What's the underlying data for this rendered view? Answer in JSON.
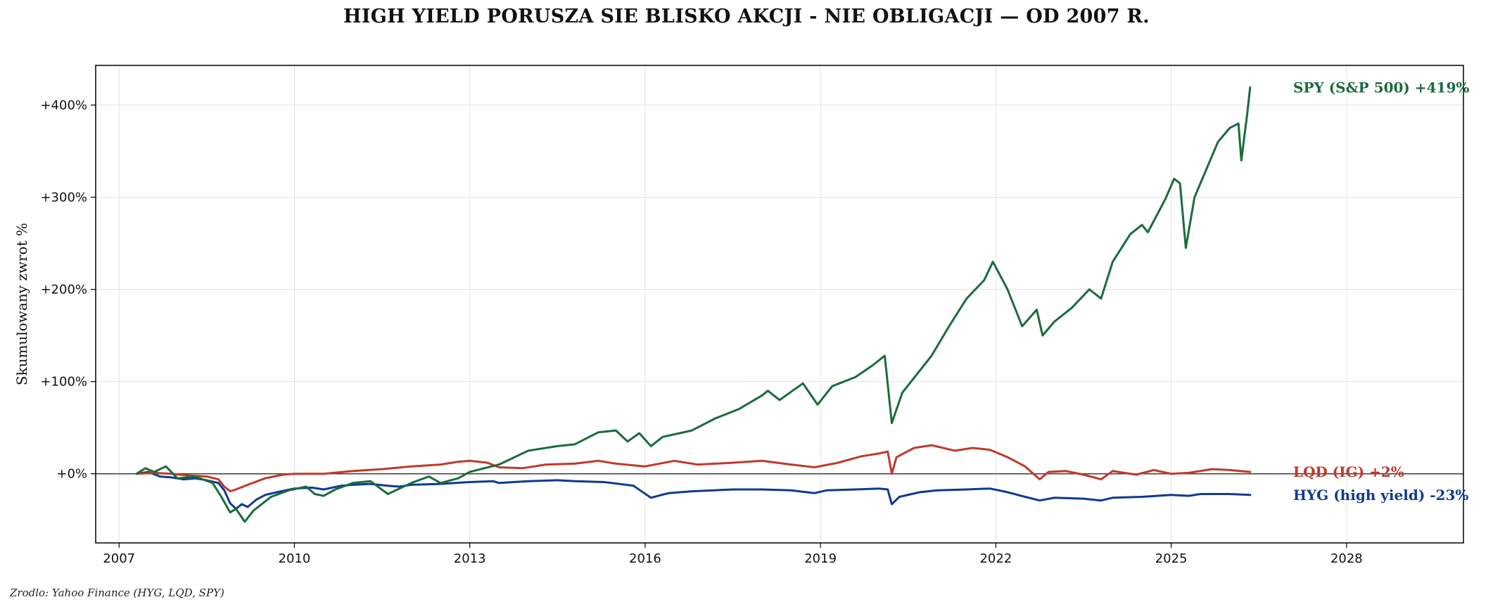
{
  "title": "HIGH YIELD PORUSZA SIE BLISKO AKCJI - NIE OBLIGACJI — OD 2007 R.",
  "source": "Zrodlo: Yahoo Finance (HYG, LQD, SPY)",
  "chart_data": {
    "type": "line",
    "title": "HIGH YIELD PORUSZA SIE BLISKO AKCJI - NIE OBLIGACJI — OD 2007 R.",
    "xlabel": "",
    "ylabel": "Skumulowany zwrot %",
    "xlim": [
      2006.6,
      2030.0
    ],
    "ylim": [
      -75,
      443
    ],
    "x_ticks": [
      2007,
      2010,
      2013,
      2016,
      2019,
      2022,
      2025,
      2028
    ],
    "x_tick_labels": [
      "2007",
      "2010",
      "2013",
      "2016",
      "2019",
      "2022",
      "2025",
      "2028"
    ],
    "y_ticks": [
      0,
      100,
      200,
      300,
      400
    ],
    "y_tick_labels": [
      "+0%",
      "+100%",
      "+200%",
      "+300%",
      "+400%"
    ],
    "grid": true,
    "zero_line": true,
    "series": [
      {
        "name": "HYG (high yield)",
        "end_label": "HYG (high yield)  -23%",
        "color": "#0f3a8f",
        "points": [
          [
            2007.3,
            0
          ],
          [
            2007.5,
            2
          ],
          [
            2007.7,
            -3
          ],
          [
            2007.9,
            -4
          ],
          [
            2008.1,
            -6
          ],
          [
            2008.3,
            -5
          ],
          [
            2008.5,
            -7
          ],
          [
            2008.7,
            -10
          ],
          [
            2008.8,
            -18
          ],
          [
            2008.9,
            -32
          ],
          [
            2009.0,
            -38
          ],
          [
            2009.1,
            -33
          ],
          [
            2009.2,
            -36
          ],
          [
            2009.35,
            -28
          ],
          [
            2009.5,
            -23
          ],
          [
            2009.7,
            -20
          ],
          [
            2010.0,
            -16
          ],
          [
            2010.3,
            -15
          ],
          [
            2010.5,
            -17
          ],
          [
            2010.8,
            -13
          ],
          [
            2011.0,
            -12
          ],
          [
            2011.3,
            -11
          ],
          [
            2011.6,
            -13
          ],
          [
            2011.8,
            -14
          ],
          [
            2012.0,
            -12
          ],
          [
            2012.5,
            -11
          ],
          [
            2013.0,
            -9
          ],
          [
            2013.4,
            -8
          ],
          [
            2013.5,
            -10
          ],
          [
            2014.0,
            -8
          ],
          [
            2014.5,
            -7
          ],
          [
            2014.8,
            -8
          ],
          [
            2015.3,
            -9
          ],
          [
            2015.8,
            -13
          ],
          [
            2016.1,
            -26
          ],
          [
            2016.4,
            -21
          ],
          [
            2016.8,
            -19
          ],
          [
            2017.5,
            -17
          ],
          [
            2018.0,
            -17
          ],
          [
            2018.5,
            -18
          ],
          [
            2018.9,
            -21
          ],
          [
            2019.1,
            -18
          ],
          [
            2019.6,
            -17
          ],
          [
            2020.0,
            -16
          ],
          [
            2020.15,
            -17
          ],
          [
            2020.22,
            -33
          ],
          [
            2020.35,
            -25
          ],
          [
            2020.7,
            -20
          ],
          [
            2021.0,
            -18
          ],
          [
            2021.5,
            -17
          ],
          [
            2021.9,
            -16
          ],
          [
            2022.2,
            -20
          ],
          [
            2022.5,
            -25
          ],
          [
            2022.75,
            -29
          ],
          [
            2023.0,
            -26
          ],
          [
            2023.5,
            -27
          ],
          [
            2023.8,
            -29
          ],
          [
            2024.0,
            -26
          ],
          [
            2024.5,
            -25
          ],
          [
            2025.0,
            -23
          ],
          [
            2025.3,
            -24
          ],
          [
            2025.5,
            -22
          ],
          [
            2026.0,
            -22
          ],
          [
            2026.35,
            -23
          ]
        ]
      },
      {
        "name": "LQD (IG)",
        "end_label": "LQD (IG)  +2%",
        "color": "#c0392b",
        "points": [
          [
            2007.3,
            0
          ],
          [
            2007.6,
            1
          ],
          [
            2007.9,
            0
          ],
          [
            2008.2,
            -2
          ],
          [
            2008.5,
            -3
          ],
          [
            2008.7,
            -6
          ],
          [
            2008.8,
            -14
          ],
          [
            2008.9,
            -19
          ],
          [
            2009.0,
            -17
          ],
          [
            2009.2,
            -12
          ],
          [
            2009.5,
            -5
          ],
          [
            2009.8,
            -1
          ],
          [
            2010.0,
            0
          ],
          [
            2010.5,
            0
          ],
          [
            2011.0,
            3
          ],
          [
            2011.5,
            5
          ],
          [
            2012.0,
            8
          ],
          [
            2012.5,
            10
          ],
          [
            2012.8,
            13
          ],
          [
            2013.0,
            14
          ],
          [
            2013.3,
            12
          ],
          [
            2013.5,
            7
          ],
          [
            2013.9,
            6
          ],
          [
            2014.3,
            10
          ],
          [
            2014.8,
            11
          ],
          [
            2015.2,
            14
          ],
          [
            2015.5,
            11
          ],
          [
            2016.0,
            8
          ],
          [
            2016.5,
            14
          ],
          [
            2016.9,
            10
          ],
          [
            2017.5,
            12
          ],
          [
            2018.0,
            14
          ],
          [
            2018.5,
            10
          ],
          [
            2018.9,
            7
          ],
          [
            2019.3,
            12
          ],
          [
            2019.7,
            19
          ],
          [
            2020.0,
            22
          ],
          [
            2020.15,
            24
          ],
          [
            2020.22,
            0
          ],
          [
            2020.3,
            18
          ],
          [
            2020.6,
            28
          ],
          [
            2020.9,
            31
          ],
          [
            2021.3,
            25
          ],
          [
            2021.6,
            28
          ],
          [
            2021.9,
            26
          ],
          [
            2022.2,
            18
          ],
          [
            2022.5,
            8
          ],
          [
            2022.75,
            -6
          ],
          [
            2022.9,
            2
          ],
          [
            2023.2,
            3
          ],
          [
            2023.5,
            -1
          ],
          [
            2023.8,
            -6
          ],
          [
            2024.0,
            3
          ],
          [
            2024.4,
            -1
          ],
          [
            2024.7,
            4
          ],
          [
            2025.0,
            0
          ],
          [
            2025.3,
            1
          ],
          [
            2025.7,
            5
          ],
          [
            2026.0,
            4
          ],
          [
            2026.35,
            2
          ]
        ]
      },
      {
        "name": "SPY (S&P 500)",
        "end_label": "SPY (S&P 500)  +419%",
        "color": "#1a6b3c",
        "points": [
          [
            2007.3,
            0
          ],
          [
            2007.45,
            6
          ],
          [
            2007.6,
            2
          ],
          [
            2007.8,
            8
          ],
          [
            2008.0,
            -5
          ],
          [
            2008.3,
            -3
          ],
          [
            2008.6,
            -10
          ],
          [
            2008.75,
            -25
          ],
          [
            2008.9,
            -42
          ],
          [
            2009.0,
            -38
          ],
          [
            2009.15,
            -52
          ],
          [
            2009.3,
            -40
          ],
          [
            2009.6,
            -25
          ],
          [
            2009.9,
            -18
          ],
          [
            2010.2,
            -14
          ],
          [
            2010.35,
            -22
          ],
          [
            2010.5,
            -24
          ],
          [
            2010.7,
            -17
          ],
          [
            2011.0,
            -10
          ],
          [
            2011.3,
            -8
          ],
          [
            2011.6,
            -22
          ],
          [
            2011.8,
            -16
          ],
          [
            2012.0,
            -10
          ],
          [
            2012.3,
            -3
          ],
          [
            2012.5,
            -10
          ],
          [
            2012.8,
            -5
          ],
          [
            2013.0,
            2
          ],
          [
            2013.5,
            10
          ],
          [
            2014.0,
            25
          ],
          [
            2014.5,
            30
          ],
          [
            2014.8,
            32
          ],
          [
            2015.2,
            45
          ],
          [
            2015.5,
            47
          ],
          [
            2015.7,
            35
          ],
          [
            2015.9,
            44
          ],
          [
            2016.1,
            30
          ],
          [
            2016.3,
            40
          ],
          [
            2016.8,
            47
          ],
          [
            2017.2,
            60
          ],
          [
            2017.6,
            70
          ],
          [
            2018.0,
            85
          ],
          [
            2018.1,
            90
          ],
          [
            2018.3,
            80
          ],
          [
            2018.7,
            98
          ],
          [
            2018.95,
            75
          ],
          [
            2019.2,
            95
          ],
          [
            2019.6,
            105
          ],
          [
            2019.9,
            118
          ],
          [
            2020.1,
            128
          ],
          [
            2020.22,
            55
          ],
          [
            2020.4,
            88
          ],
          [
            2020.7,
            112
          ],
          [
            2020.9,
            128
          ],
          [
            2021.2,
            160
          ],
          [
            2021.5,
            190
          ],
          [
            2021.8,
            210
          ],
          [
            2021.95,
            230
          ],
          [
            2022.2,
            200
          ],
          [
            2022.45,
            160
          ],
          [
            2022.7,
            178
          ],
          [
            2022.8,
            150
          ],
          [
            2023.0,
            165
          ],
          [
            2023.3,
            180
          ],
          [
            2023.6,
            200
          ],
          [
            2023.8,
            190
          ],
          [
            2024.0,
            230
          ],
          [
            2024.3,
            260
          ],
          [
            2024.5,
            270
          ],
          [
            2024.6,
            262
          ],
          [
            2024.9,
            298
          ],
          [
            2025.05,
            320
          ],
          [
            2025.15,
            315
          ],
          [
            2025.25,
            245
          ],
          [
            2025.4,
            300
          ],
          [
            2025.6,
            330
          ],
          [
            2025.8,
            360
          ],
          [
            2026.0,
            375
          ],
          [
            2026.15,
            380
          ],
          [
            2026.2,
            340
          ],
          [
            2026.3,
            390
          ],
          [
            2026.35,
            419
          ]
        ]
      }
    ]
  }
}
